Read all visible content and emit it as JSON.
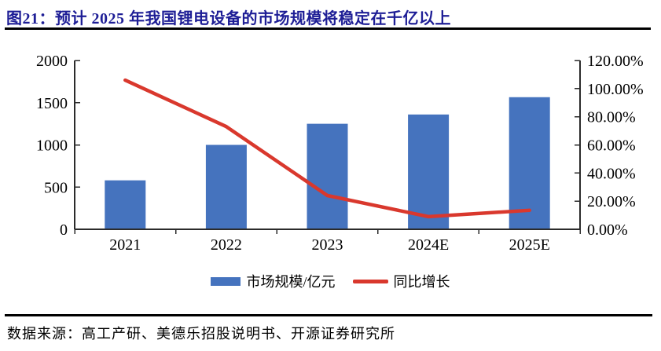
{
  "header": {
    "title": "图21：预计 2025 年我国锂电设备的市场规模将稳定在千亿以上"
  },
  "chart_data": {
    "type": "combo",
    "categories": [
      "2021",
      "2022",
      "2023",
      "2024E",
      "2025E"
    ],
    "series": [
      {
        "name": "市场规模/亿元",
        "type": "bar",
        "axis": "left",
        "values": [
          580,
          1000,
          1250,
          1360,
          1565
        ],
        "color": "#4573BE"
      },
      {
        "name": "同比增长",
        "type": "line",
        "axis": "right",
        "values": [
          106,
          73,
          24,
          9,
          13.5
        ],
        "color": "#D9382D"
      }
    ],
    "left_axis": {
      "min": 0,
      "max": 2000,
      "tick_labels": [
        "0",
        "500",
        "1000",
        "1500",
        "2000"
      ]
    },
    "right_axis": {
      "min": 0,
      "max": 120,
      "tick_labels": [
        "0.00%",
        "20.00%",
        "40.00%",
        "60.00%",
        "80.00%",
        "100.00%",
        "120.00%"
      ]
    },
    "grid": false,
    "legend_position": "bottom",
    "title": "预计 2025 年我国锂电设备的市场规模将稳定在千亿以上"
  },
  "colors": {
    "title_text": "#1E1E96",
    "bar": "#4573BE",
    "line": "#D9382D",
    "axis": "#2B2B2B",
    "rule": "#000000"
  },
  "footer": {
    "source": "数据来源：高工产研、美德乐招股说明书、开源证券研究所"
  }
}
